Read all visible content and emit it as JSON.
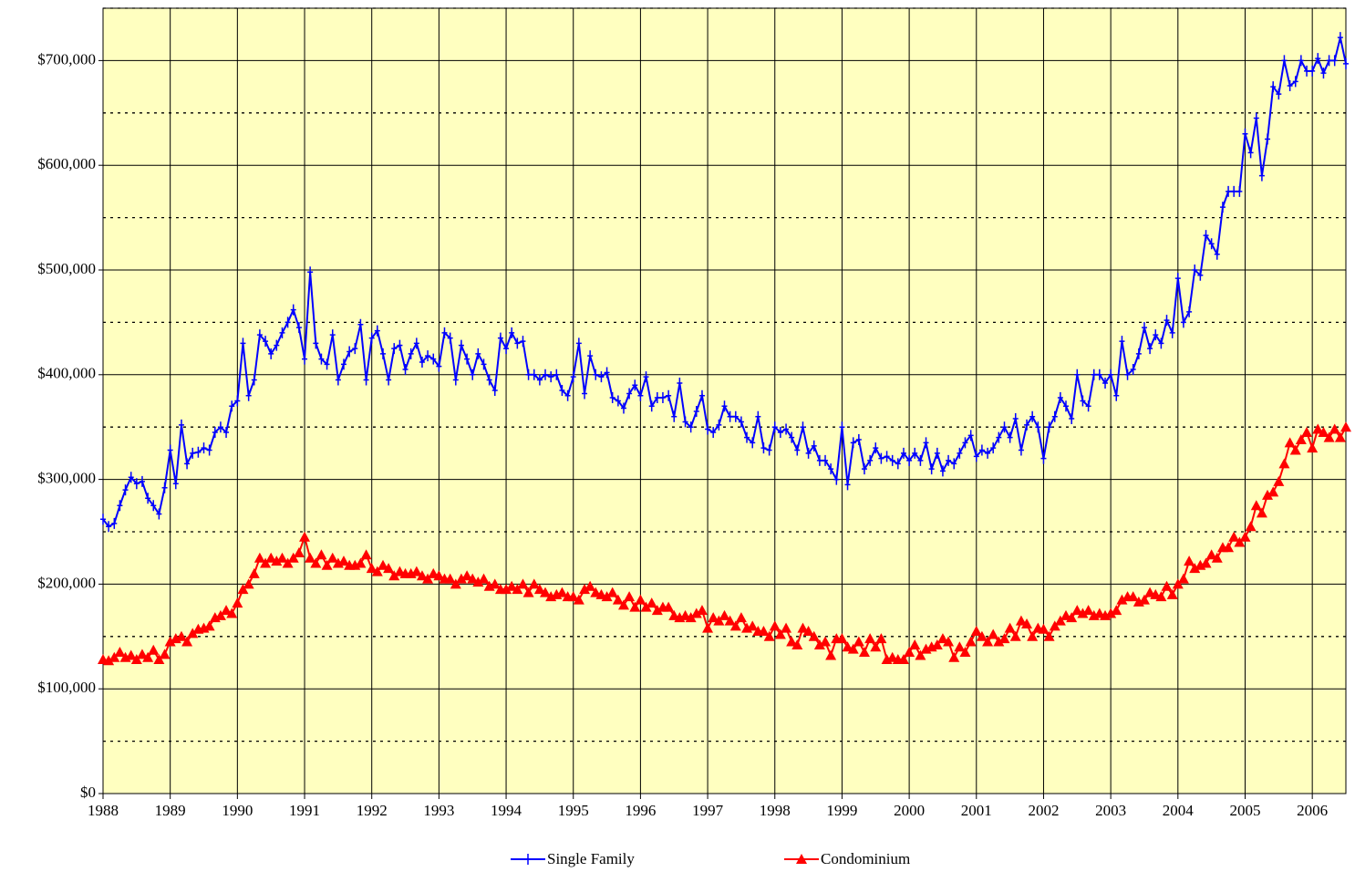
{
  "chart_data": {
    "type": "line",
    "x": [
      1988,
      1988.083,
      1988.167,
      1988.25,
      1988.333,
      1988.417,
      1988.5,
      1988.583,
      1988.667,
      1988.75,
      1988.833,
      1988.917,
      1989,
      1989.083,
      1989.167,
      1989.25,
      1989.333,
      1989.417,
      1989.5,
      1989.583,
      1989.667,
      1989.75,
      1989.833,
      1989.917,
      1990,
      1990.083,
      1990.167,
      1990.25,
      1990.333,
      1990.417,
      1990.5,
      1990.583,
      1990.667,
      1990.75,
      1990.833,
      1990.917,
      1991,
      1991.083,
      1991.167,
      1991.25,
      1991.333,
      1991.417,
      1991.5,
      1991.583,
      1991.667,
      1991.75,
      1991.833,
      1991.917,
      1992,
      1992.083,
      1992.167,
      1992.25,
      1992.333,
      1992.417,
      1992.5,
      1992.583,
      1992.667,
      1992.75,
      1992.833,
      1992.917,
      1993,
      1993.083,
      1993.167,
      1993.25,
      1993.333,
      1993.417,
      1993.5,
      1993.583,
      1993.667,
      1993.75,
      1993.833,
      1993.917,
      1994,
      1994.083,
      1994.167,
      1994.25,
      1994.333,
      1994.417,
      1994.5,
      1994.583,
      1994.667,
      1994.75,
      1994.833,
      1994.917,
      1995,
      1995.083,
      1995.167,
      1995.25,
      1995.333,
      1995.417,
      1995.5,
      1995.583,
      1995.667,
      1995.75,
      1995.833,
      1995.917,
      1996,
      1996.083,
      1996.167,
      1996.25,
      1996.333,
      1996.417,
      1996.5,
      1996.583,
      1996.667,
      1996.75,
      1996.833,
      1996.917,
      1997,
      1997.083,
      1997.167,
      1997.25,
      1997.333,
      1997.417,
      1997.5,
      1997.583,
      1997.667,
      1997.75,
      1997.833,
      1997.917,
      1998,
      1998.083,
      1998.167,
      1998.25,
      1998.333,
      1998.417,
      1998.5,
      1998.583,
      1998.667,
      1998.75,
      1998.833,
      1998.917,
      1999,
      1999.083,
      1999.167,
      1999.25,
      1999.333,
      1999.417,
      1999.5,
      1999.583,
      1999.667,
      1999.75,
      1999.833,
      1999.917,
      2000,
      2000.083,
      2000.167,
      2000.25,
      2000.333,
      2000.417,
      2000.5,
      2000.583,
      2000.667,
      2000.75,
      2000.833,
      2000.917,
      2001,
      2001.083,
      2001.167,
      2001.25,
      2001.333,
      2001.417,
      2001.5,
      2001.583,
      2001.667,
      2001.75,
      2001.833,
      2001.917,
      2002,
      2002.083,
      2002.167,
      2002.25,
      2002.333,
      2002.417,
      2002.5,
      2002.583,
      2002.667,
      2002.75,
      2002.833,
      2002.917,
      2003,
      2003.083,
      2003.167,
      2003.25,
      2003.333,
      2003.417,
      2003.5,
      2003.583,
      2003.667,
      2003.75,
      2003.833,
      2003.917,
      2004,
      2004.083,
      2004.167,
      2004.25,
      2004.333,
      2004.417,
      2004.5,
      2004.583,
      2004.667,
      2004.75,
      2004.833,
      2004.917,
      2005,
      2005.083,
      2005.167,
      2005.25,
      2005.333,
      2005.417,
      2005.5,
      2005.583,
      2005.667,
      2005.75,
      2005.833,
      2005.917,
      2006,
      2006.083,
      2006.167,
      2006.25,
      2006.333,
      2006.417,
      2006.5
    ],
    "series": [
      {
        "name": "Single Family",
        "color": "#0000ff",
        "marker": "plus",
        "values": [
          262000,
          255000,
          258000,
          275000,
          290000,
          302000,
          296000,
          298000,
          282000,
          275000,
          267000,
          292000,
          328000,
          296000,
          352000,
          315000,
          325000,
          326000,
          330000,
          328000,
          345000,
          350000,
          345000,
          370000,
          375000,
          430000,
          380000,
          395000,
          438000,
          432000,
          420000,
          428000,
          440000,
          450000,
          462000,
          445000,
          415000,
          498000,
          430000,
          415000,
          410000,
          438000,
          395000,
          410000,
          422000,
          425000,
          448000,
          395000,
          435000,
          442000,
          420000,
          395000,
          425000,
          428000,
          405000,
          420000,
          430000,
          412000,
          418000,
          415000,
          408000,
          440000,
          435000,
          395000,
          428000,
          415000,
          400000,
          420000,
          410000,
          395000,
          385000,
          435000,
          425000,
          440000,
          430000,
          432000,
          400000,
          400000,
          395000,
          400000,
          398000,
          400000,
          385000,
          380000,
          398000,
          430000,
          382000,
          418000,
          400000,
          398000,
          402000,
          378000,
          375000,
          368000,
          382000,
          390000,
          380000,
          398000,
          370000,
          378000,
          378000,
          380000,
          360000,
          392000,
          355000,
          350000,
          365000,
          380000,
          348000,
          345000,
          352000,
          370000,
          360000,
          360000,
          355000,
          340000,
          335000,
          360000,
          330000,
          328000,
          350000,
          345000,
          348000,
          340000,
          328000,
          350000,
          325000,
          332000,
          318000,
          318000,
          310000,
          300000,
          350000,
          295000,
          335000,
          338000,
          310000,
          318000,
          330000,
          320000,
          322000,
          318000,
          315000,
          325000,
          318000,
          325000,
          318000,
          335000,
          310000,
          325000,
          308000,
          318000,
          315000,
          325000,
          335000,
          342000,
          322000,
          328000,
          325000,
          330000,
          340000,
          350000,
          340000,
          358000,
          328000,
          352000,
          360000,
          350000,
          320000,
          350000,
          360000,
          378000,
          370000,
          358000,
          400000,
          375000,
          370000,
          400000,
          400000,
          392000,
          400000,
          380000,
          432000,
          400000,
          405000,
          420000,
          445000,
          425000,
          438000,
          430000,
          452000,
          440000,
          492000,
          450000,
          460000,
          500000,
          495000,
          533000,
          525000,
          515000,
          560000,
          575000,
          575000,
          575000,
          630000,
          612000,
          645000,
          590000,
          625000,
          675000,
          668000,
          700000,
          676000,
          680000,
          700000,
          690000,
          690000,
          702000,
          688000,
          700000,
          700000,
          722000,
          697000
        ]
      },
      {
        "name": "Condominium",
        "color": "#ff0000",
        "marker": "triangle",
        "values": [
          128000,
          127000,
          130000,
          135000,
          130000,
          132000,
          128000,
          133000,
          130000,
          137000,
          128000,
          133000,
          145000,
          148000,
          150000,
          145000,
          153000,
          157000,
          158000,
          160000,
          168000,
          170000,
          175000,
          172000,
          182000,
          195000,
          200000,
          210000,
          225000,
          220000,
          225000,
          222000,
          225000,
          220000,
          225000,
          230000,
          245000,
          225000,
          220000,
          228000,
          218000,
          225000,
          220000,
          222000,
          218000,
          218000,
          220000,
          228000,
          215000,
          212000,
          218000,
          215000,
          208000,
          212000,
          210000,
          210000,
          212000,
          208000,
          205000,
          210000,
          208000,
          205000,
          205000,
          200000,
          205000,
          208000,
          205000,
          202000,
          205000,
          198000,
          200000,
          195000,
          195000,
          198000,
          195000,
          200000,
          192000,
          200000,
          195000,
          192000,
          188000,
          190000,
          192000,
          188000,
          188000,
          185000,
          195000,
          198000,
          192000,
          190000,
          188000,
          192000,
          185000,
          180000,
          188000,
          178000,
          185000,
          178000,
          182000,
          175000,
          178000,
          178000,
          170000,
          168000,
          170000,
          168000,
          172000,
          175000,
          158000,
          168000,
          165000,
          170000,
          165000,
          160000,
          168000,
          158000,
          160000,
          155000,
          155000,
          150000,
          160000,
          152000,
          158000,
          145000,
          142000,
          158000,
          155000,
          150000,
          142000,
          145000,
          132000,
          148000,
          148000,
          140000,
          138000,
          145000,
          135000,
          148000,
          140000,
          148000,
          128000,
          130000,
          128000,
          128000,
          135000,
          142000,
          132000,
          138000,
          140000,
          142000,
          148000,
          145000,
          130000,
          140000,
          135000,
          145000,
          155000,
          150000,
          145000,
          152000,
          145000,
          148000,
          158000,
          150000,
          165000,
          162000,
          150000,
          158000,
          157000,
          150000,
          160000,
          165000,
          170000,
          168000,
          175000,
          172000,
          175000,
          170000,
          172000,
          170000,
          172000,
          175000,
          185000,
          188000,
          188000,
          183000,
          185000,
          192000,
          190000,
          188000,
          198000,
          190000,
          200000,
          205000,
          222000,
          215000,
          218000,
          220000,
          228000,
          225000,
          235000,
          235000,
          245000,
          240000,
          245000,
          255000,
          275000,
          268000,
          285000,
          288000,
          298000,
          315000,
          335000,
          328000,
          338000,
          345000,
          330000,
          348000,
          345000,
          340000,
          348000,
          340000,
          350000
        ]
      }
    ],
    "xlim": [
      1988,
      2006.5
    ],
    "xticks": [
      1988,
      1989,
      1990,
      1991,
      1992,
      1993,
      1994,
      1995,
      1996,
      1997,
      1998,
      1999,
      2000,
      2001,
      2002,
      2003,
      2004,
      2005,
      2006
    ],
    "ylim": [
      0,
      750000
    ],
    "yticks": [
      {
        "value": 0,
        "label": "$0"
      },
      {
        "value": 100000,
        "label": "$100,000"
      },
      {
        "value": 200000,
        "label": "$200,000"
      },
      {
        "value": 300000,
        "label": "$300,000"
      },
      {
        "value": 400000,
        "label": "$400,000"
      },
      {
        "value": 500000,
        "label": "$500,000"
      },
      {
        "value": 600000,
        "label": "$600,000"
      },
      {
        "value": 700000,
        "label": "$700,000"
      }
    ],
    "yminor_grid": [
      50000,
      150000,
      250000,
      350000,
      450000,
      550000,
      650000,
      750000
    ],
    "grid": true,
    "background": "#ffffc0",
    "legend": "bottom"
  }
}
